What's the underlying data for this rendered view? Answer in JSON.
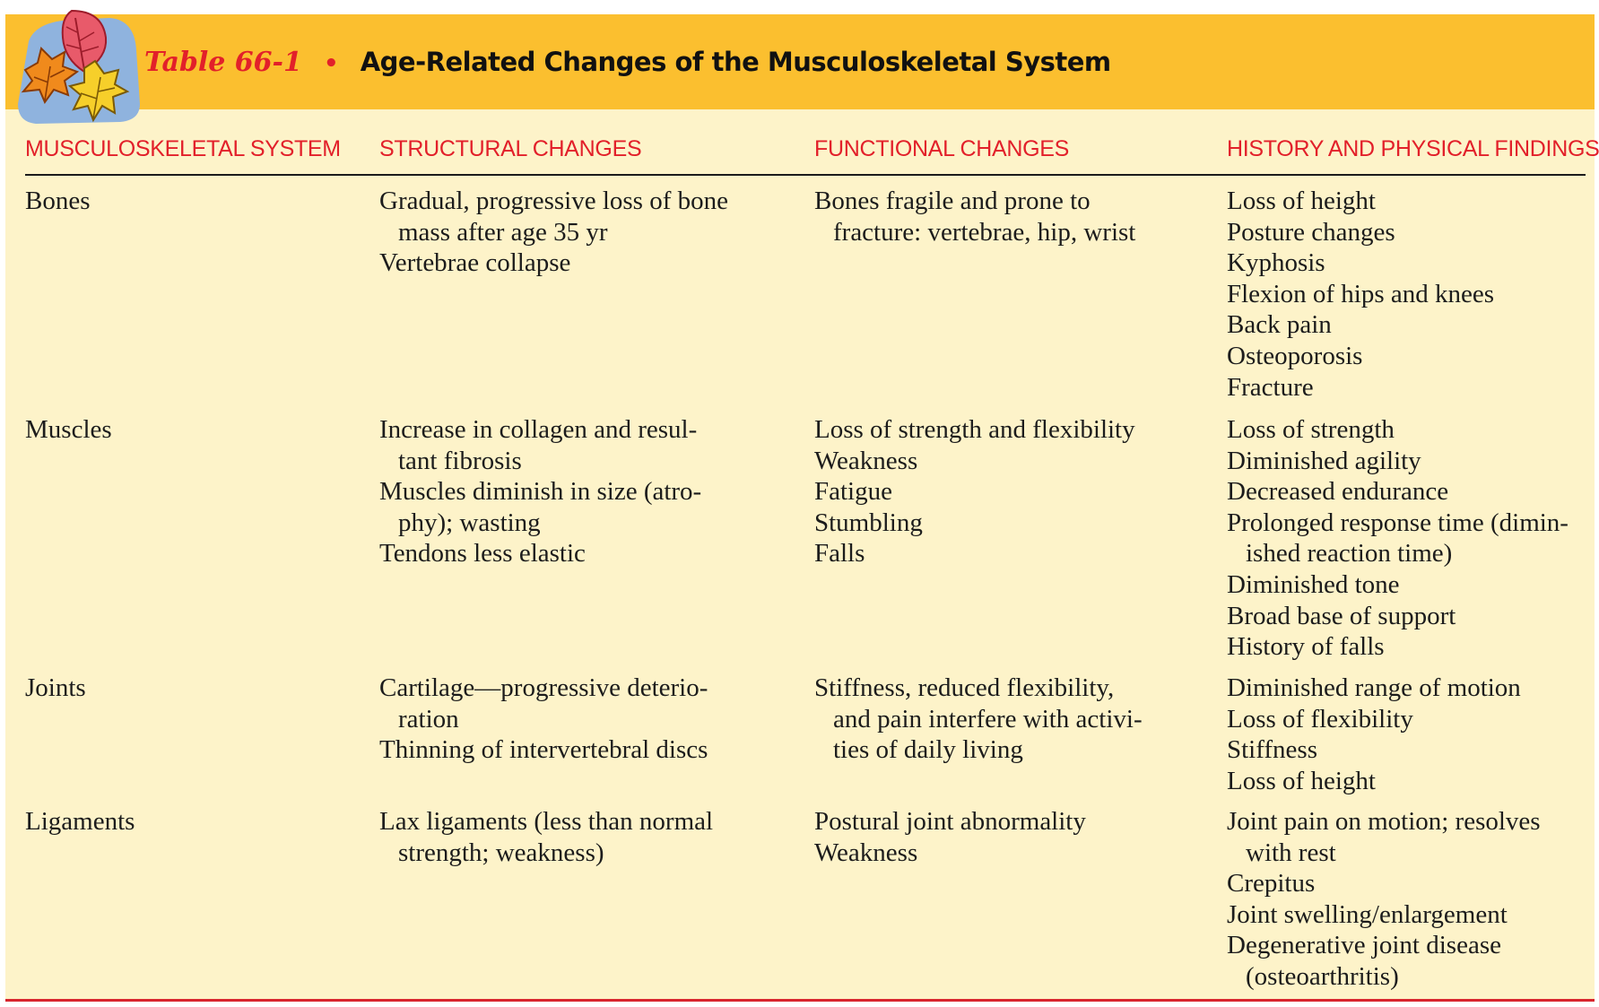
{
  "title": {
    "number": "Table 66-1",
    "bullet": "•",
    "label": "Age-Related Changes of the Musculoskeletal System"
  },
  "headers": {
    "system": "MUSCULOSKELETAL SYSTEM",
    "structural": "STRUCTURAL CHANGES",
    "functional": "FUNCTIONAL CHANGES",
    "findings": "HISTORY AND PHYSICAL FINDINGS"
  },
  "colors": {
    "title_bar": "#fbbf2f",
    "table_bg": "#fdf3c9",
    "accent_red": "#e2202a"
  },
  "icons": {
    "emblem": "autumn-leaves-icon"
  },
  "rows": [
    {
      "system": "Bones",
      "structural": [
        {
          "text": "Gradual, progressive loss of bone",
          "cont": false
        },
        {
          "text": "mass after age 35 yr",
          "cont": true
        },
        {
          "text": "Vertebrae collapse",
          "cont": false
        }
      ],
      "functional": [
        {
          "text": "Bones fragile and prone to",
          "cont": false
        },
        {
          "text": "fracture: vertebrae, hip, wrist",
          "cont": true
        }
      ],
      "findings": [
        {
          "text": "Loss of height",
          "cont": false
        },
        {
          "text": "Posture changes",
          "cont": false
        },
        {
          "text": "Kyphosis",
          "cont": false
        },
        {
          "text": "Flexion of hips and knees",
          "cont": false
        },
        {
          "text": "Back pain",
          "cont": false
        },
        {
          "text": "Osteoporosis",
          "cont": false
        },
        {
          "text": "Fracture",
          "cont": false
        }
      ]
    },
    {
      "system": "Muscles",
      "structural": [
        {
          "text": "Increase in collagen and resul-",
          "cont": false
        },
        {
          "text": "tant fibrosis",
          "cont": true
        },
        {
          "text": "Muscles diminish in size (atro-",
          "cont": false
        },
        {
          "text": "phy); wasting",
          "cont": true
        },
        {
          "text": "Tendons less elastic",
          "cont": false
        }
      ],
      "functional": [
        {
          "text": "Loss of strength and flexibility",
          "cont": false
        },
        {
          "text": "Weakness",
          "cont": false
        },
        {
          "text": "Fatigue",
          "cont": false
        },
        {
          "text": "Stumbling",
          "cont": false
        },
        {
          "text": "Falls",
          "cont": false
        }
      ],
      "findings": [
        {
          "text": "Loss of strength",
          "cont": false
        },
        {
          "text": "Diminished agility",
          "cont": false
        },
        {
          "text": "Decreased endurance",
          "cont": false
        },
        {
          "text": "Prolonged response time (dimin-",
          "cont": false
        },
        {
          "text": "ished reaction time)",
          "cont": true
        },
        {
          "text": "Diminished tone",
          "cont": false
        },
        {
          "text": "Broad base of support",
          "cont": false
        },
        {
          "text": "History of falls",
          "cont": false
        }
      ]
    },
    {
      "system": "Joints",
      "structural": [
        {
          "text": "Cartilage—progressive deterio-",
          "cont": false
        },
        {
          "text": "ration",
          "cont": true
        },
        {
          "text": "Thinning of intervertebral discs",
          "cont": false
        }
      ],
      "functional": [
        {
          "text": "Stiffness, reduced flexibility,",
          "cont": false
        },
        {
          "text": "and pain interfere with activi-",
          "cont": true
        },
        {
          "text": "ties of daily living",
          "cont": true
        }
      ],
      "findings": [
        {
          "text": "Diminished range of motion",
          "cont": false
        },
        {
          "text": "Loss of flexibility",
          "cont": false
        },
        {
          "text": "Stiffness",
          "cont": false
        },
        {
          "text": "Loss of height",
          "cont": false
        }
      ]
    },
    {
      "system": "Ligaments",
      "structural": [
        {
          "text": "Lax ligaments (less than normal",
          "cont": false
        },
        {
          "text": "strength; weakness)",
          "cont": true
        }
      ],
      "functional": [
        {
          "text": "Postural joint abnormality",
          "cont": false
        },
        {
          "text": "Weakness",
          "cont": false
        }
      ],
      "findings": [
        {
          "text": "Joint pain on motion; resolves",
          "cont": false
        },
        {
          "text": "with rest",
          "cont": true
        },
        {
          "text": "Crepitus",
          "cont": false
        },
        {
          "text": "Joint swelling/enlargement",
          "cont": false
        },
        {
          "text": "Degenerative joint disease",
          "cont": false
        },
        {
          "text": "(osteoarthritis)",
          "cont": true
        }
      ]
    }
  ]
}
